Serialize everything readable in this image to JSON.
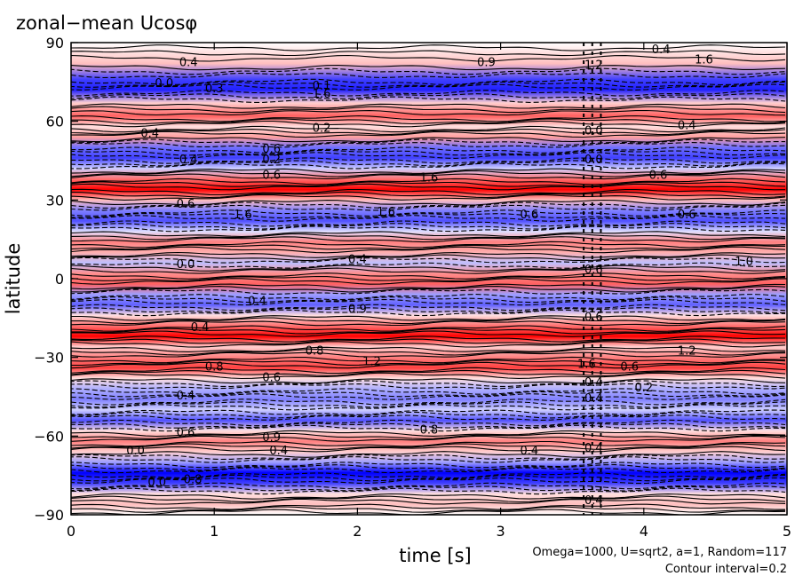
{
  "title": "zonal−mean Ucosφ",
  "notes": {
    "params": "Omega=1000, U=sqrt2, a=1, Random=117",
    "contour": "Contour interval=0.2"
  },
  "chart_data": {
    "type": "heatmap",
    "title": "zonal−mean Ucosφ",
    "xlabel": "time [s]",
    "ylabel": "latitude",
    "xlim": [
      0,
      5
    ],
    "ylim": [
      -90,
      90
    ],
    "x_ticks": [
      0,
      1,
      2,
      3,
      4,
      5
    ],
    "y_ticks": [
      90,
      60,
      30,
      0,
      -30,
      -60,
      -90
    ],
    "y_tick_labels": [
      "90",
      "60",
      "30",
      "0",
      "−30",
      "−60",
      "−90"
    ],
    "contour_interval": 0.2,
    "colors": {
      "positive": "#ff0000",
      "negative": "#0000ff",
      "zero": "#ffffff",
      "contour": "#000000"
    },
    "bands": [
      {
        "lat": 90,
        "u": 0.0
      },
      {
        "lat": 82,
        "u": 0.4
      },
      {
        "lat": 76,
        "u": -1.2
      },
      {
        "lat": 72,
        "u": -1.4
      },
      {
        "lat": 67,
        "u": 0.3
      },
      {
        "lat": 62,
        "u": 1.0
      },
      {
        "lat": 58,
        "u": 0.2
      },
      {
        "lat": 54,
        "u": 0.6
      },
      {
        "lat": 50,
        "u": -0.9
      },
      {
        "lat": 46,
        "u": -1.2
      },
      {
        "lat": 42,
        "u": -0.3
      },
      {
        "lat": 38,
        "u": 0.9
      },
      {
        "lat": 34,
        "u": 1.6
      },
      {
        "lat": 30,
        "u": 0.4
      },
      {
        "lat": 26,
        "u": -0.8
      },
      {
        "lat": 22,
        "u": -1.1
      },
      {
        "lat": 18,
        "u": -0.2
      },
      {
        "lat": 14,
        "u": 0.8
      },
      {
        "lat": 10,
        "u": 0.5
      },
      {
        "lat": 6,
        "u": -0.4
      },
      {
        "lat": 2,
        "u": 0.7
      },
      {
        "lat": -2,
        "u": 1.0
      },
      {
        "lat": -6,
        "u": -0.6
      },
      {
        "lat": -10,
        "u": -1.0
      },
      {
        "lat": -14,
        "u": 0.2
      },
      {
        "lat": -18,
        "u": 0.9
      },
      {
        "lat": -22,
        "u": 1.6
      },
      {
        "lat": -26,
        "u": 0.3
      },
      {
        "lat": -30,
        "u": 0.8
      },
      {
        "lat": -34,
        "u": 1.2
      },
      {
        "lat": -38,
        "u": 0.2
      },
      {
        "lat": -42,
        "u": -0.5
      },
      {
        "lat": -46,
        "u": -0.8
      },
      {
        "lat": -50,
        "u": -0.3
      },
      {
        "lat": -54,
        "u": -1.1
      },
      {
        "lat": -58,
        "u": 0.2
      },
      {
        "lat": -62,
        "u": 0.8
      },
      {
        "lat": -66,
        "u": 0.3
      },
      {
        "lat": -70,
        "u": -0.6
      },
      {
        "lat": -74,
        "u": -1.6
      },
      {
        "lat": -78,
        "u": -1.2
      },
      {
        "lat": -82,
        "u": 0.2
      },
      {
        "lat": -86,
        "u": 0.4
      },
      {
        "lat": -90,
        "u": 0.0
      }
    ],
    "contour_labels": [
      {
        "t": 0.82,
        "lat": 81,
        "text": "0.4"
      },
      {
        "t": 0.65,
        "lat": 73,
        "text": "0.0"
      },
      {
        "t": 1.0,
        "lat": 71,
        "text": "0.3"
      },
      {
        "t": 1.75,
        "lat": 72,
        "text": "0.1"
      },
      {
        "t": 1.75,
        "lat": 69,
        "text": "1.6"
      },
      {
        "t": 2.9,
        "lat": 81,
        "text": "0.9"
      },
      {
        "t": 3.65,
        "lat": 80,
        "text": "1.2"
      },
      {
        "t": 4.12,
        "lat": 86,
        "text": "0.4"
      },
      {
        "t": 4.42,
        "lat": 82,
        "text": "1.6"
      },
      {
        "t": 1.4,
        "lat": 48,
        "text": "0.6"
      },
      {
        "t": 0.55,
        "lat": 54,
        "text": "0.4"
      },
      {
        "t": 1.75,
        "lat": 56,
        "text": "0.2"
      },
      {
        "t": 0.82,
        "lat": 44,
        "text": "0.4"
      },
      {
        "t": 1.4,
        "lat": 44,
        "text": "0.2"
      },
      {
        "t": 3.65,
        "lat": 55,
        "text": "0.0"
      },
      {
        "t": 3.65,
        "lat": 44,
        "text": "0.0"
      },
      {
        "t": 4.3,
        "lat": 57,
        "text": "0.4"
      },
      {
        "t": 1.4,
        "lat": 38,
        "text": "0.6"
      },
      {
        "t": 2.5,
        "lat": 37,
        "text": "1.6"
      },
      {
        "t": 4.1,
        "lat": 38,
        "text": "0.6"
      },
      {
        "t": 0.8,
        "lat": 27,
        "text": "0.6"
      },
      {
        "t": 1.2,
        "lat": 23,
        "text": "1.6"
      },
      {
        "t": 2.2,
        "lat": 24,
        "text": "1.6"
      },
      {
        "t": 3.2,
        "lat": 23,
        "text": "0.6"
      },
      {
        "t": 4.3,
        "lat": 23,
        "text": "0.6"
      },
      {
        "t": 0.8,
        "lat": 4,
        "text": "0.0"
      },
      {
        "t": 2.0,
        "lat": 6,
        "text": "0.4"
      },
      {
        "t": 4.7,
        "lat": 5,
        "text": "1.0"
      },
      {
        "t": 3.65,
        "lat": 2,
        "text": "0.6"
      },
      {
        "t": 1.3,
        "lat": -10,
        "text": "0.4"
      },
      {
        "t": 2.0,
        "lat": -13,
        "text": "0.9"
      },
      {
        "t": 3.65,
        "lat": -16,
        "text": "0.6"
      },
      {
        "t": 0.9,
        "lat": -20,
        "text": "0.4"
      },
      {
        "t": 1.7,
        "lat": -29,
        "text": "0.8"
      },
      {
        "t": 2.1,
        "lat": -33,
        "text": "1.2"
      },
      {
        "t": 1.0,
        "lat": -35,
        "text": "0.8"
      },
      {
        "t": 3.6,
        "lat": -34,
        "text": "1.6"
      },
      {
        "t": 3.9,
        "lat": -35,
        "text": "0.6"
      },
      {
        "t": 4.3,
        "lat": -29,
        "text": "1.2"
      },
      {
        "t": 1.4,
        "lat": -39,
        "text": "0.6"
      },
      {
        "t": 0.8,
        "lat": -46,
        "text": "0.4"
      },
      {
        "t": 3.65,
        "lat": -41,
        "text": "0.4"
      },
      {
        "t": 3.65,
        "lat": -47,
        "text": "0.4"
      },
      {
        "t": 4.0,
        "lat": -43,
        "text": "0.2"
      },
      {
        "t": 0.8,
        "lat": -60,
        "text": "0.6"
      },
      {
        "t": 1.4,
        "lat": -62,
        "text": "0.9"
      },
      {
        "t": 2.5,
        "lat": -59,
        "text": "0.8"
      },
      {
        "t": 0.45,
        "lat": -67,
        "text": "0.0"
      },
      {
        "t": 1.45,
        "lat": -67,
        "text": "0.4"
      },
      {
        "t": 3.2,
        "lat": -67,
        "text": "0.4"
      },
      {
        "t": 3.65,
        "lat": -66,
        "text": "0.4"
      },
      {
        "t": 0.6,
        "lat": -79,
        "text": "0.0"
      },
      {
        "t": 0.85,
        "lat": -78,
        "text": "0.8"
      },
      {
        "t": 3.65,
        "lat": -86,
        "text": "0.4"
      }
    ]
  }
}
